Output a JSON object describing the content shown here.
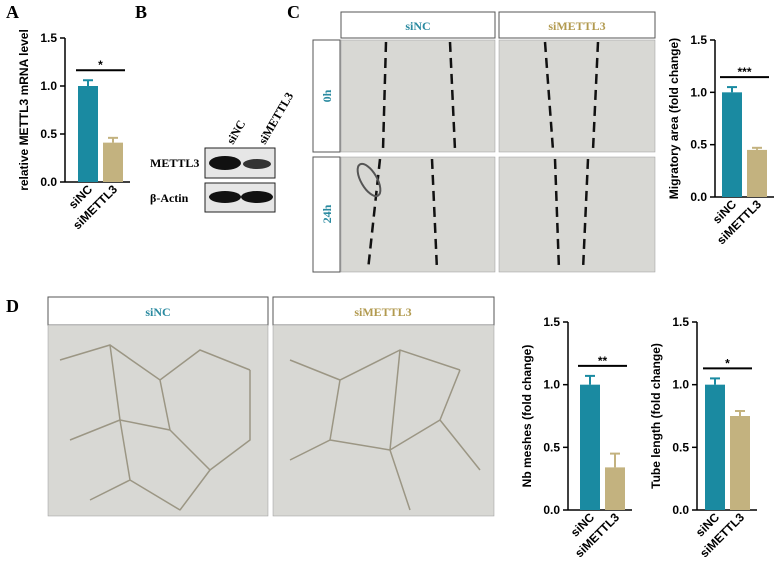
{
  "panel_labels": [
    "A",
    "B",
    "C",
    "D"
  ],
  "blot": {
    "lanes": [
      "siNC",
      "siMETTL3"
    ],
    "rows": [
      "METTL3",
      "β-Actin"
    ]
  },
  "scratch": {
    "columns": [
      "siNC",
      "siMETTL3"
    ],
    "rows": [
      "0h",
      "24h"
    ]
  },
  "tube": {
    "columns": [
      "siNC",
      "siMETTL3"
    ]
  },
  "chart_data": [
    {
      "type": "bar",
      "ylabel": "relative METTL3 mRNA level",
      "categories": [
        "siNC",
        "siMETTL3"
      ],
      "values": [
        1.0,
        0.41
      ],
      "errors": [
        0.06,
        0.05
      ],
      "colors": [
        "#1a8aa1",
        "#c3b27f"
      ],
      "annotation": "*",
      "ylim": [
        0,
        1.5
      ],
      "yticks": [
        {
          "value": 0,
          "label": "0.0"
        },
        {
          "value": 0.5,
          "label": "0.5"
        },
        {
          "value": 1,
          "label": "1.0"
        },
        {
          "value": 1.5,
          "label": "1.5"
        }
      ]
    },
    {
      "type": "bar",
      "ylabel": "Migratory area (fold change)",
      "categories": [
        "siNC",
        "siMETTL3"
      ],
      "values": [
        1.0,
        0.45
      ],
      "errors": [
        0.05,
        0.02
      ],
      "colors": [
        "#1a8aa1",
        "#c3b27f"
      ],
      "annotation": "***",
      "ylim": [
        0,
        1.5
      ],
      "yticks": [
        {
          "value": 0,
          "label": "0.0"
        },
        {
          "value": 0.5,
          "label": "0.5"
        },
        {
          "value": 1,
          "label": "1.0"
        },
        {
          "value": 1.5,
          "label": "1.5"
        }
      ]
    },
    {
      "type": "bar",
      "ylabel": "Nb meshes (fold change)",
      "categories": [
        "siNC",
        "siMETTL3"
      ],
      "values": [
        1.0,
        0.34
      ],
      "errors": [
        0.07,
        0.11
      ],
      "colors": [
        "#1a8aa1",
        "#c3b27f"
      ],
      "annotation": "**",
      "ylim": [
        0,
        1.5
      ],
      "yticks": [
        {
          "value": 0,
          "label": "0.0"
        },
        {
          "value": 0.5,
          "label": "0.5"
        },
        {
          "value": 1,
          "label": "1.0"
        },
        {
          "value": 1.5,
          "label": "1.5"
        }
      ]
    },
    {
      "type": "bar",
      "ylabel": "Tube length (fold change)",
      "categories": [
        "siNC",
        "siMETTL3"
      ],
      "values": [
        1.0,
        0.75
      ],
      "errors": [
        0.05,
        0.04
      ],
      "colors": [
        "#1a8aa1",
        "#c3b27f"
      ],
      "annotation": "*",
      "ylim": [
        0,
        1.5
      ],
      "yticks": [
        {
          "value": 0,
          "label": "0.0"
        },
        {
          "value": 0.5,
          "label": "0.5"
        },
        {
          "value": 1,
          "label": "1.0"
        },
        {
          "value": 1.5,
          "label": "1.5"
        }
      ]
    }
  ]
}
